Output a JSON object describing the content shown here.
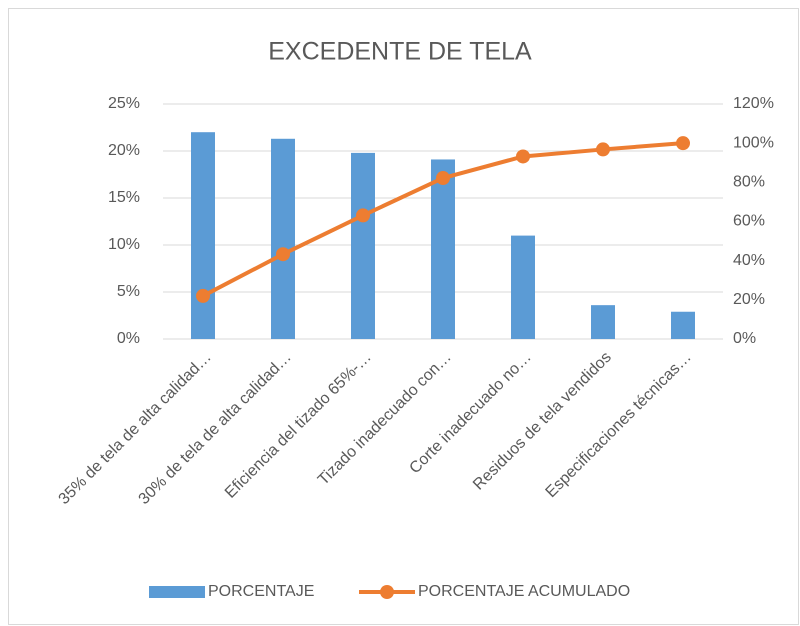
{
  "chart_data": {
    "type": "pareto",
    "title": "EXCEDENTE DE TELA",
    "categories": [
      "35% de tela de alta calidad…",
      "30% de tela de alta calidad…",
      "Eficiencia del tizado 65%-…",
      "Tizado inadecuado con…",
      "Corte inadecuado no…",
      "Residuos de tela vendidos",
      "Especificaciones técnicas…"
    ],
    "series": [
      {
        "name": "PORCENTAJE",
        "color": "#5b9bd5",
        "values": [
          22.0,
          21.3,
          19.8,
          19.1,
          11.0,
          3.6,
          2.9
        ]
      },
      {
        "name": "PORCENTAJE ACUMULADO",
        "color": "#ed7d31",
        "axis": "y2",
        "values": [
          22,
          43.3,
          63.1,
          82.2,
          93.2,
          96.8,
          100
        ]
      }
    ],
    "ylim": [
      0,
      25
    ],
    "yticks": [
      {
        "value": 0,
        "label": "0%"
      },
      {
        "value": 5,
        "label": "5%"
      },
      {
        "value": 10,
        "label": "10%"
      },
      {
        "value": 15,
        "label": "15%"
      },
      {
        "value": 20,
        "label": "20%"
      },
      {
        "value": 25,
        "label": "25%"
      }
    ],
    "y2lim": [
      0,
      120
    ],
    "y2ticks": [
      {
        "value": 0,
        "label": "0%"
      },
      {
        "value": 20,
        "label": "20%"
      },
      {
        "value": 40,
        "label": "40%"
      },
      {
        "value": 60,
        "label": "60%"
      },
      {
        "value": 80,
        "label": "80%"
      },
      {
        "value": 100,
        "label": "100%"
      },
      {
        "value": 120,
        "label": "120%"
      }
    ],
    "grid": true,
    "legend": "bottom"
  }
}
